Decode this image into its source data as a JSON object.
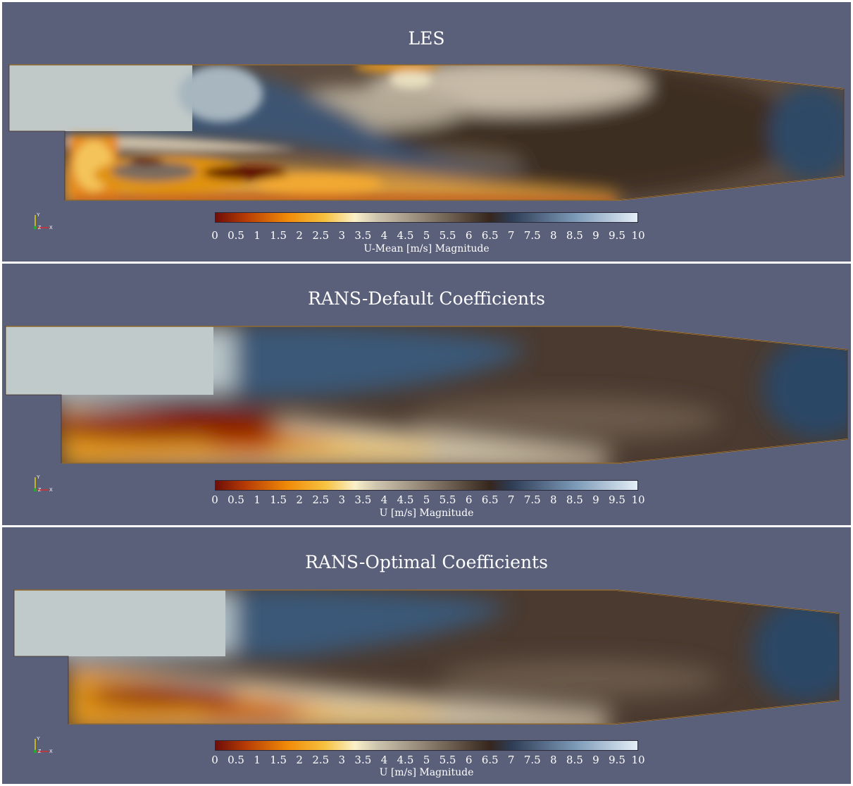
{
  "colorbar": {
    "ticks": [
      "0",
      "0.5",
      "1",
      "1.5",
      "2",
      "2.5",
      "3",
      "3.5",
      "4",
      "4.5",
      "5",
      "5.5",
      "6",
      "6.5",
      "7",
      "7.5",
      "8",
      "8.5",
      "9",
      "9.5",
      "10"
    ],
    "stops": [
      {
        "v": 0.0,
        "c": "#6e0e08"
      },
      {
        "v": 0.07,
        "c": "#b53a05"
      },
      {
        "v": 0.17,
        "c": "#f08a08"
      },
      {
        "v": 0.26,
        "c": "#f6c240"
      },
      {
        "v": 0.33,
        "c": "#faf0c8"
      },
      {
        "v": 0.38,
        "c": "#cfc6b0"
      },
      {
        "v": 0.5,
        "c": "#8d8070"
      },
      {
        "v": 0.65,
        "c": "#36261c"
      },
      {
        "v": 0.7,
        "c": "#2e3c55"
      },
      {
        "v": 0.85,
        "c": "#7a98b6"
      },
      {
        "v": 1.0,
        "c": "#e4eef6"
      }
    ]
  },
  "axes_icon": {
    "y": "Y",
    "z": "Z",
    "x": "X"
  },
  "panels": [
    {
      "title": "LES",
      "colorbar_label": "U-Mean [m/s] Magnitude"
    },
    {
      "title": "RANS-Default Coefficients",
      "colorbar_label": "U [m/s] Magnitude"
    },
    {
      "title": "RANS-Optimal Coefficients",
      "colorbar_label": "U [m/s] Magnitude"
    }
  ]
}
